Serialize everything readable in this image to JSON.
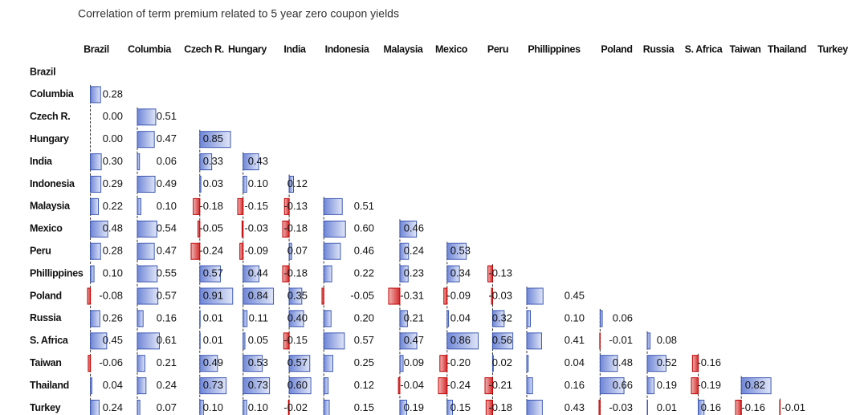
{
  "table": {
    "title": "Correlation of term premium related to 5 year zero coupon yields",
    "columns": [
      "Brazil",
      "Columbia",
      "Czech R.",
      "Hungary",
      "India",
      "Indonesia",
      "Malaysia",
      "Mexico",
      "Peru",
      "Phillippines",
      "Poland",
      "Russia",
      "S. Africa",
      "Taiwan",
      "Thailand",
      "Turkey"
    ],
    "rows": [
      {
        "label": "Brazil",
        "cells": []
      },
      {
        "label": "Columbia",
        "cells": [
          "0.28"
        ]
      },
      {
        "label": "Czech R.",
        "cells": [
          "0.00",
          "0.51"
        ]
      },
      {
        "label": "Hungary",
        "cells": [
          "0.00",
          "0.47",
          "0.85"
        ]
      },
      {
        "label": "India",
        "cells": [
          "0.30",
          "0.06",
          "0.33",
          "0.43"
        ]
      },
      {
        "label": "Indonesia",
        "cells": [
          "0.29",
          "0.49",
          "0.03",
          "0.10",
          "0.12"
        ]
      },
      {
        "label": "Malaysia",
        "cells": [
          "0.22",
          "0.10",
          "-0.18",
          "-0.15",
          "-0.13",
          "0.51"
        ]
      },
      {
        "label": "Mexico",
        "cells": [
          "0.48",
          "0.54",
          "-0.05",
          "-0.03",
          "-0.18",
          "0.60",
          "0.46"
        ]
      },
      {
        "label": "Peru",
        "cells": [
          "0.28",
          "0.47",
          "-0.24",
          "-0.09",
          "0.07",
          "0.46",
          "0.24",
          "0.53"
        ]
      },
      {
        "label": "Phillippines",
        "cells": [
          "0.10",
          "0.55",
          "0.57",
          "0.44",
          "-0.18",
          "0.22",
          "0.23",
          "0.34",
          "-0.13"
        ]
      },
      {
        "label": "Poland",
        "cells": [
          "-0.08",
          "0.57",
          "0.91",
          "0.84",
          "0.35",
          "-0.05",
          "-0.31",
          "-0.09",
          "-0.03",
          "0.45"
        ]
      },
      {
        "label": "Russia",
        "cells": [
          "0.26",
          "0.16",
          "0.01",
          "0.11",
          "0.40",
          "0.20",
          "0.21",
          "0.04",
          "0.32",
          "0.10",
          "0.06"
        ]
      },
      {
        "label": "S. Africa",
        "cells": [
          "0.45",
          "0.61",
          "0.01",
          "0.05",
          "-0.15",
          "0.57",
          "0.47",
          "0.86",
          "0.56",
          "0.41",
          "-0.01",
          "0.08"
        ]
      },
      {
        "label": "Taiwan",
        "cells": [
          "-0.06",
          "0.21",
          "0.49",
          "0.53",
          "0.57",
          "0.25",
          "0.09",
          "-0.20",
          "0.02",
          "0.04",
          "0.48",
          "0.52",
          "-0.16"
        ]
      },
      {
        "label": "Thailand",
        "cells": [
          "0.04",
          "0.24",
          "0.73",
          "0.73",
          "0.60",
          "0.12",
          "-0.04",
          "-0.24",
          "-0.21",
          "0.16",
          "0.66",
          "0.19",
          "-0.19",
          "0.82"
        ]
      },
      {
        "label": "Turkey",
        "cells": [
          "0.24",
          "0.07",
          "0.10",
          "0.10",
          "-0.02",
          "0.15",
          "0.19",
          "0.15",
          "-0.18",
          "0.43",
          "-0.03",
          "0.01",
          "0.16",
          "-0.16",
          "-0.01"
        ]
      }
    ]
  }
}
